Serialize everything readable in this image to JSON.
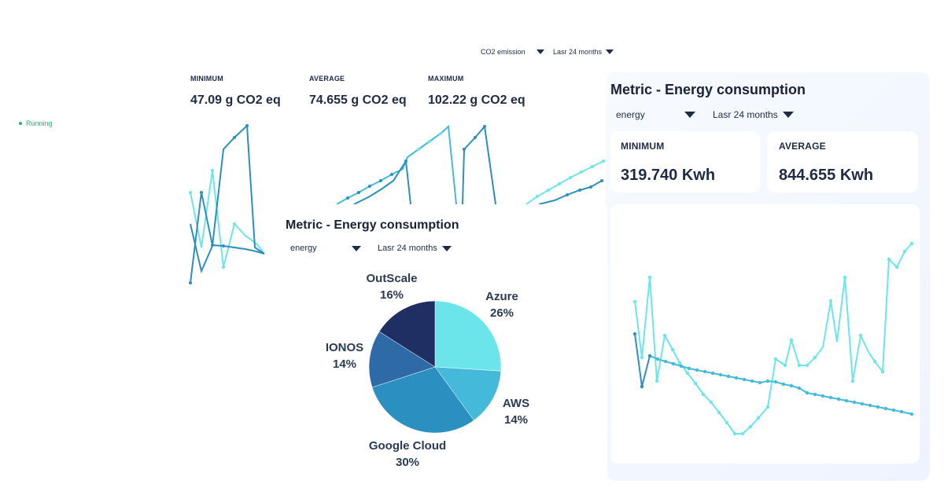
{
  "status": {
    "label": "Running",
    "color": "#2bb36b"
  },
  "top_filters": {
    "metric": "CO2 emission",
    "period": "Lasr 24 months"
  },
  "co2_stats": [
    {
      "label": "MINIMUM",
      "value": "47.09 g CO2 eq"
    },
    {
      "label": "AVERAGE",
      "value": "74.655 g CO2 eq"
    },
    {
      "label": "MAXIMUM",
      "value": "102.22 g CO2 eq"
    }
  ],
  "right_panel": {
    "title": "Metric - Energy consumption",
    "filter_metric": "energy",
    "filter_period": "Lasr 24 months",
    "stats": [
      {
        "label": "MINIMUM",
        "value": "319.740 Kwh"
      },
      {
        "label": "AVERAGE",
        "value": "844.655 Kwh"
      }
    ]
  },
  "pie_panel": {
    "title": "Metric - Energy consumption",
    "filter_metric": "energy",
    "filter_period": "Lasr 24 months"
  },
  "chart_data": {
    "type": "pie",
    "slices": [
      {
        "name": "Azure",
        "value": 26,
        "label": "26%",
        "color": "#6ce5ea"
      },
      {
        "name": "AWS",
        "value": 14,
        "label": "14%",
        "color": "#45b9d9"
      },
      {
        "name": "Google Cloud",
        "value": 30,
        "label": "30%",
        "color": "#2b8fbf"
      },
      {
        "name": "IONOS",
        "value": 14,
        "label": "14%",
        "color": "#2e6aa6"
      },
      {
        "name": "OutScale",
        "value": 16,
        "label": "16%",
        "color": "#1f2f63"
      }
    ]
  },
  "colors": {
    "light_series": "#6ce5ea",
    "dark_series": "#2b8fbf",
    "mid_series": "#45b9d9"
  }
}
